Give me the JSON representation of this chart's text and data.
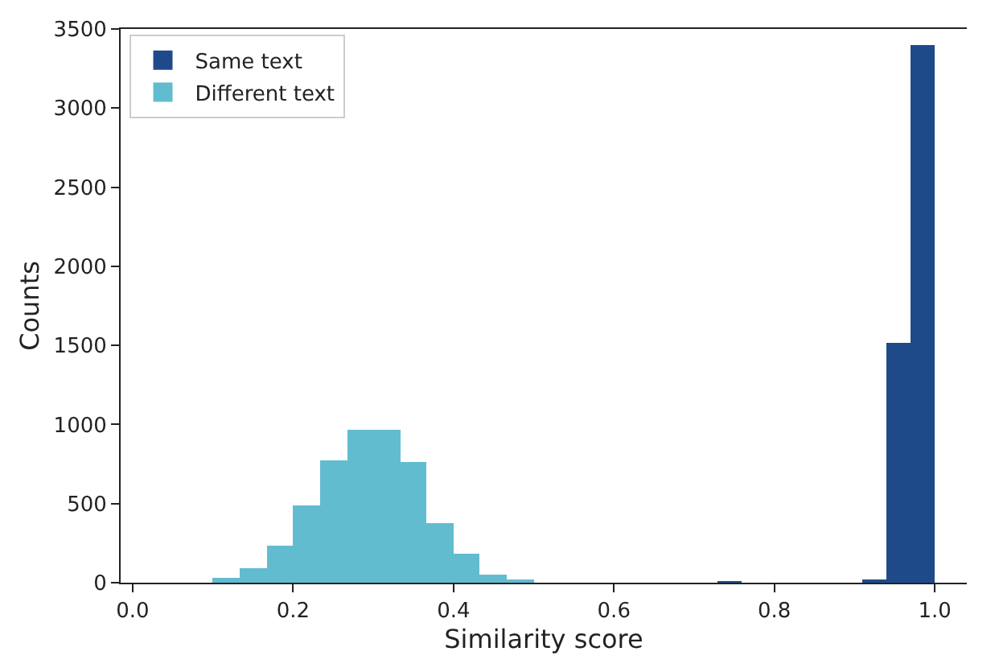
{
  "chart_data": {
    "type": "histogram",
    "xlabel": "Similarity score",
    "ylabel": "Counts",
    "bins": [
      0.1,
      0.133,
      0.167,
      0.2,
      0.233,
      0.267,
      0.3,
      0.333,
      0.367,
      0.4,
      0.433,
      0.467,
      0.5,
      0.73,
      0.76,
      0.91,
      0.94,
      0.97,
      1.0
    ],
    "series": [
      {
        "name": "Same text",
        "color": "#1f4a8a",
        "values": [
          0,
          0,
          0,
          0,
          0,
          0,
          0,
          0,
          0,
          0,
          0,
          0,
          0,
          10,
          0,
          20,
          1520,
          3400
        ]
      },
      {
        "name": "Different text",
        "color": "#62bcd0",
        "values": [
          30,
          90,
          230,
          490,
          770,
          970,
          970,
          760,
          380,
          180,
          50,
          20,
          0,
          0,
          0,
          0,
          0,
          0
        ]
      }
    ],
    "xlim": [
      -0.015,
      1.04
    ],
    "xticks": [
      {
        "value": 0,
        "label": "0.0"
      },
      0.2,
      0.4,
      0.6,
      0.8,
      {
        "value": 1,
        "label": "1.0"
      }
    ],
    "ylim": [
      0,
      3500
    ],
    "yticks": [
      0,
      500,
      1000,
      1500,
      2000,
      2500,
      3000,
      3500
    ],
    "legend": "top left"
  }
}
